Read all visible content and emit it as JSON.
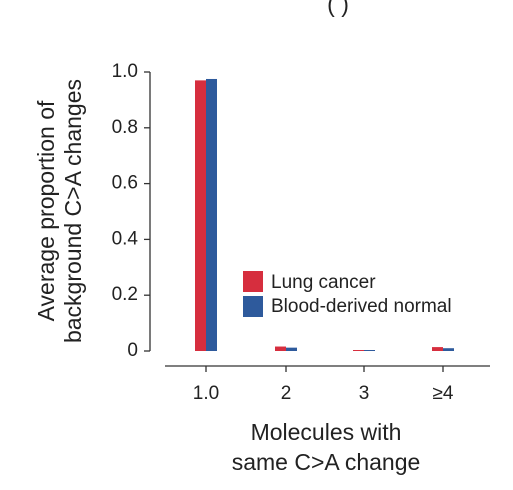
{
  "chart_data": {
    "type": "bar",
    "title_fragment": "(                              )",
    "categories": [
      "1.0",
      "2",
      "3",
      "≥4"
    ],
    "series": [
      {
        "name": "Lung cancer",
        "color": "#d62e3e",
        "values": [
          0.97,
          0.016,
          0.003,
          0.014
        ]
      },
      {
        "name": "Blood-derived normal",
        "color": "#2e5a9c",
        "values": [
          0.975,
          0.012,
          0.002,
          0.01
        ]
      }
    ],
    "xlabel": [
      "Molecules with",
      "same C>A change"
    ],
    "ylabel": [
      "Average proportion of",
      "background C>A changes"
    ],
    "ylim": [
      0,
      1.0
    ],
    "yticks": [
      0,
      0.2,
      0.4,
      0.6,
      0.8,
      1.0
    ],
    "ytick_labels": [
      "0",
      "0.2",
      "0.4",
      "0.6",
      "0.8",
      "1.0"
    ],
    "grid": false,
    "legend_position": "right-middle"
  }
}
